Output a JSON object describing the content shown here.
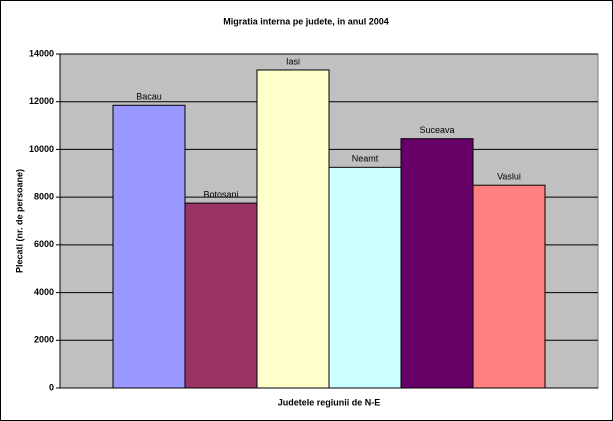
{
  "chart_data": {
    "type": "bar",
    "title": "Migratia interna pe judete, in anul 2004",
    "x_label": "Judetele regiunii de N-E",
    "y_label": "Plecati (nr. de persoane)",
    "series": [
      {
        "name": "Bacau",
        "color": "#9999ff",
        "values": [
          11850
        ]
      },
      {
        "name": "Botosani",
        "color": "#993366",
        "values": [
          7750
        ]
      },
      {
        "name": "Iasi",
        "color": "#ffffcc",
        "values": [
          13330
        ]
      },
      {
        "name": "Neamt",
        "color": "#ccffff",
        "values": [
          9250
        ]
      },
      {
        "name": "Suceava",
        "color": "#660066",
        "values": [
          10450
        ]
      },
      {
        "name": "Vaslui",
        "color": "#ff8080",
        "values": [
          8500
        ]
      }
    ],
    "ylim": [
      0,
      14000
    ],
    "yticks": [
      0,
      2000,
      4000,
      6000,
      8000,
      10000,
      12000,
      14000
    ],
    "grid": true
  }
}
